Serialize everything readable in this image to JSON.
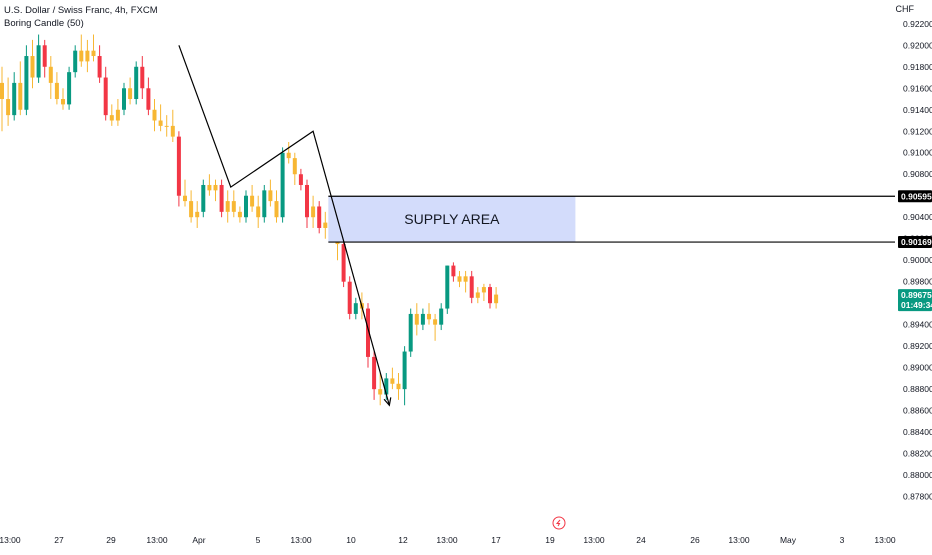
{
  "header": {
    "symbol_line": "U.S. Dollar / Swiss Franc, 4h, FXCM",
    "indicator_line": "Boring Candle (50)",
    "currency": "CHF"
  },
  "chart_data": {
    "type": "candlestick",
    "symbol": "U.S. Dollar / Swiss Franc",
    "timeframe": "4h",
    "source": "FXCM",
    "indicator": "Boring Candle (50)",
    "ylim": [
      0.8768,
      0.9224
    ],
    "y_ticks": [
      "0.92200",
      "0.92000",
      "0.91800",
      "0.91600",
      "0.91400",
      "0.91200",
      "0.91000",
      "0.90800",
      "0.90600",
      "0.90400",
      "0.90200",
      "0.90000",
      "0.89800",
      "0.89600",
      "0.89400",
      "0.89200",
      "0.89000",
      "0.88800",
      "0.88600",
      "0.88400",
      "0.88200",
      "0.88000",
      "0.87800"
    ],
    "x_ticks": [
      "13:00",
      "27",
      "29",
      "13:00",
      "Apr",
      "5",
      "13:00",
      "10",
      "12",
      "13:00",
      "17",
      "19",
      "13:00",
      "24",
      "26",
      "13:00",
      "May",
      "3",
      "13:00"
    ],
    "candles": [
      {
        "o": 0.9165,
        "h": 0.918,
        "l": 0.912,
        "c": 0.915
      },
      {
        "o": 0.915,
        "h": 0.917,
        "l": 0.9125,
        "c": 0.9135
      },
      {
        "o": 0.9135,
        "h": 0.9175,
        "l": 0.913,
        "c": 0.9165
      },
      {
        "o": 0.9165,
        "h": 0.9185,
        "l": 0.9135,
        "c": 0.914
      },
      {
        "o": 0.914,
        "h": 0.92,
        "l": 0.9135,
        "c": 0.919
      },
      {
        "o": 0.919,
        "h": 0.9205,
        "l": 0.916,
        "c": 0.917
      },
      {
        "o": 0.917,
        "h": 0.921,
        "l": 0.9165,
        "c": 0.92
      },
      {
        "o": 0.92,
        "h": 0.9205,
        "l": 0.917,
        "c": 0.918
      },
      {
        "o": 0.918,
        "h": 0.919,
        "l": 0.915,
        "c": 0.9165
      },
      {
        "o": 0.9165,
        "h": 0.9175,
        "l": 0.9145,
        "c": 0.915
      },
      {
        "o": 0.915,
        "h": 0.916,
        "l": 0.914,
        "c": 0.9145
      },
      {
        "o": 0.9145,
        "h": 0.918,
        "l": 0.914,
        "c": 0.9175
      },
      {
        "o": 0.9175,
        "h": 0.92,
        "l": 0.917,
        "c": 0.9195
      },
      {
        "o": 0.9195,
        "h": 0.921,
        "l": 0.918,
        "c": 0.9185
      },
      {
        "o": 0.9185,
        "h": 0.9205,
        "l": 0.9175,
        "c": 0.9195
      },
      {
        "o": 0.9195,
        "h": 0.921,
        "l": 0.9185,
        "c": 0.919
      },
      {
        "o": 0.919,
        "h": 0.92,
        "l": 0.9165,
        "c": 0.917
      },
      {
        "o": 0.917,
        "h": 0.918,
        "l": 0.913,
        "c": 0.9135
      },
      {
        "o": 0.9135,
        "h": 0.9145,
        "l": 0.9125,
        "c": 0.913
      },
      {
        "o": 0.913,
        "h": 0.915,
        "l": 0.9125,
        "c": 0.914
      },
      {
        "o": 0.914,
        "h": 0.9165,
        "l": 0.9135,
        "c": 0.916
      },
      {
        "o": 0.916,
        "h": 0.917,
        "l": 0.9145,
        "c": 0.915
      },
      {
        "o": 0.915,
        "h": 0.9185,
        "l": 0.9145,
        "c": 0.918
      },
      {
        "o": 0.918,
        "h": 0.919,
        "l": 0.915,
        "c": 0.916
      },
      {
        "o": 0.916,
        "h": 0.917,
        "l": 0.9135,
        "c": 0.914
      },
      {
        "o": 0.914,
        "h": 0.915,
        "l": 0.912,
        "c": 0.913
      },
      {
        "o": 0.913,
        "h": 0.9145,
        "l": 0.912,
        "c": 0.9125
      },
      {
        "o": 0.9125,
        "h": 0.9135,
        "l": 0.9115,
        "c": 0.9125
      },
      {
        "o": 0.9125,
        "h": 0.914,
        "l": 0.911,
        "c": 0.9115
      },
      {
        "o": 0.9115,
        "h": 0.912,
        "l": 0.905,
        "c": 0.906
      },
      {
        "o": 0.906,
        "h": 0.9075,
        "l": 0.905,
        "c": 0.9055
      },
      {
        "o": 0.9055,
        "h": 0.9065,
        "l": 0.9035,
        "c": 0.904
      },
      {
        "o": 0.904,
        "h": 0.9055,
        "l": 0.903,
        "c": 0.9045
      },
      {
        "o": 0.9045,
        "h": 0.9075,
        "l": 0.904,
        "c": 0.907
      },
      {
        "o": 0.907,
        "h": 0.908,
        "l": 0.906,
        "c": 0.9065
      },
      {
        "o": 0.9065,
        "h": 0.9075,
        "l": 0.9055,
        "c": 0.907
      },
      {
        "o": 0.907,
        "h": 0.9075,
        "l": 0.904,
        "c": 0.9045
      },
      {
        "o": 0.9045,
        "h": 0.9065,
        "l": 0.9035,
        "c": 0.9055
      },
      {
        "o": 0.9055,
        "h": 0.9065,
        "l": 0.904,
        "c": 0.9045
      },
      {
        "o": 0.9045,
        "h": 0.905,
        "l": 0.9035,
        "c": 0.904
      },
      {
        "o": 0.904,
        "h": 0.9065,
        "l": 0.9035,
        "c": 0.906
      },
      {
        "o": 0.906,
        "h": 0.907,
        "l": 0.9045,
        "c": 0.905
      },
      {
        "o": 0.905,
        "h": 0.906,
        "l": 0.903,
        "c": 0.904
      },
      {
        "o": 0.904,
        "h": 0.907,
        "l": 0.9035,
        "c": 0.9065
      },
      {
        "o": 0.9065,
        "h": 0.9075,
        "l": 0.905,
        "c": 0.9055
      },
      {
        "o": 0.9055,
        "h": 0.9065,
        "l": 0.9035,
        "c": 0.904
      },
      {
        "o": 0.904,
        "h": 0.9105,
        "l": 0.9035,
        "c": 0.91
      },
      {
        "o": 0.91,
        "h": 0.911,
        "l": 0.909,
        "c": 0.9095
      },
      {
        "o": 0.9095,
        "h": 0.91,
        "l": 0.907,
        "c": 0.908
      },
      {
        "o": 0.908,
        "h": 0.9085,
        "l": 0.9065,
        "c": 0.907
      },
      {
        "o": 0.907,
        "h": 0.9075,
        "l": 0.903,
        "c": 0.904
      },
      {
        "o": 0.904,
        "h": 0.906,
        "l": 0.903,
        "c": 0.905
      },
      {
        "o": 0.905,
        "h": 0.9055,
        "l": 0.9025,
        "c": 0.903
      },
      {
        "o": 0.903,
        "h": 0.9045,
        "l": 0.902,
        "c": 0.9035
      },
      {
        "o": 0.9035,
        "h": 0.904,
        "l": 0.9025,
        "c": 0.903
      },
      {
        "o": 0.903,
        "h": 0.9035,
        "l": 0.9,
        "c": 0.9015
      },
      {
        "o": 0.9015,
        "h": 0.902,
        "l": 0.8975,
        "c": 0.898
      },
      {
        "o": 0.898,
        "h": 0.8985,
        "l": 0.8945,
        "c": 0.895
      },
      {
        "o": 0.895,
        "h": 0.8965,
        "l": 0.8945,
        "c": 0.896
      },
      {
        "o": 0.896,
        "h": 0.897,
        "l": 0.8945,
        "c": 0.8955
      },
      {
        "o": 0.8955,
        "h": 0.896,
        "l": 0.89,
        "c": 0.891
      },
      {
        "o": 0.891,
        "h": 0.8915,
        "l": 0.887,
        "c": 0.888
      },
      {
        "o": 0.888,
        "h": 0.8895,
        "l": 0.8865,
        "c": 0.8875
      },
      {
        "o": 0.8875,
        "h": 0.8895,
        "l": 0.887,
        "c": 0.889
      },
      {
        "o": 0.889,
        "h": 0.89,
        "l": 0.888,
        "c": 0.8885
      },
      {
        "o": 0.8885,
        "h": 0.8895,
        "l": 0.887,
        "c": 0.888
      },
      {
        "o": 0.888,
        "h": 0.892,
        "l": 0.8865,
        "c": 0.8915
      },
      {
        "o": 0.8915,
        "h": 0.8955,
        "l": 0.891,
        "c": 0.895
      },
      {
        "o": 0.895,
        "h": 0.896,
        "l": 0.893,
        "c": 0.894
      },
      {
        "o": 0.894,
        "h": 0.8955,
        "l": 0.8935,
        "c": 0.895
      },
      {
        "o": 0.895,
        "h": 0.896,
        "l": 0.894,
        "c": 0.8945
      },
      {
        "o": 0.8945,
        "h": 0.895,
        "l": 0.8925,
        "c": 0.894
      },
      {
        "o": 0.894,
        "h": 0.896,
        "l": 0.8935,
        "c": 0.8955
      },
      {
        "o": 0.8955,
        "h": 0.8995,
        "l": 0.895,
        "c": 0.8995
      },
      {
        "o": 0.8995,
        "h": 0.8998,
        "l": 0.898,
        "c": 0.8985
      },
      {
        "o": 0.8985,
        "h": 0.899,
        "l": 0.8975,
        "c": 0.898
      },
      {
        "o": 0.898,
        "h": 0.899,
        "l": 0.897,
        "c": 0.8985
      },
      {
        "o": 0.8985,
        "h": 0.899,
        "l": 0.896,
        "c": 0.8965
      },
      {
        "o": 0.8965,
        "h": 0.8975,
        "l": 0.896,
        "c": 0.897
      },
      {
        "o": 0.897,
        "h": 0.8978,
        "l": 0.8962,
        "c": 0.8975
      },
      {
        "o": 0.8975,
        "h": 0.8978,
        "l": 0.8955,
        "c": 0.896
      },
      {
        "o": 0.896,
        "h": 0.8975,
        "l": 0.8955,
        "c": 0.8968
      }
    ],
    "zigzag": [
      {
        "bar": 29.0,
        "price": 0.92
      },
      {
        "bar": 37.5,
        "price": 0.9068
      },
      {
        "bar": 51.0,
        "price": 0.912
      },
      {
        "bar": 63.5,
        "price": 0.8865
      }
    ],
    "supply_zone": {
      "label": "SUPPLY AREA",
      "top": 0.90595,
      "bottom": 0.90169,
      "start_bar": 53.5,
      "end_bar": 94.0
    },
    "price_tags": [
      {
        "label": "0.90595",
        "price": 0.90595,
        "style": "black"
      },
      {
        "label": "0.90169",
        "price": 0.90169,
        "style": "black"
      },
      {
        "label": "0.89675",
        "sublabel": "01:49:34",
        "price": 0.89675,
        "style": "green"
      }
    ],
    "colors": {
      "bull": "#089981",
      "bear": "#f23645",
      "boring": "#f7b733",
      "zone_fill": "#d3dcfb",
      "line": "#000000",
      "last_price": "#089981"
    }
  }
}
